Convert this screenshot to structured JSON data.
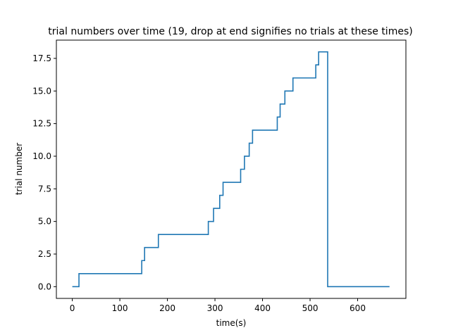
{
  "chart_data": {
    "type": "line",
    "title": "trial numbers over time (19, drop at end signifies no trials at these times)",
    "xlabel": "time(s)",
    "ylabel": "trial number",
    "xlim": [
      -33.5,
      701.5
    ],
    "ylim": [
      -0.9,
      18.9
    ],
    "xticks": [
      0,
      100,
      200,
      300,
      400,
      500,
      600
    ],
    "yticks": [
      0.0,
      2.5,
      5.0,
      7.5,
      10.0,
      12.5,
      15.0,
      17.5
    ],
    "ytick_labels": [
      "0.0",
      "2.5",
      "5.0",
      "7.5",
      "10.0",
      "12.5",
      "15.0",
      "17.5"
    ],
    "grid": false,
    "legend": false,
    "series": [
      {
        "color": "#1f77b4",
        "drawstyle": "steps-post",
        "x": [
          0,
          14,
          146,
          152,
          181,
          286,
          297,
          310,
          317,
          354,
          362,
          372,
          379,
          431,
          437,
          447,
          464,
          512,
          518,
          537,
          667
        ],
        "y": [
          0,
          1,
          2,
          3,
          4,
          5,
          6,
          7,
          8,
          9,
          10,
          11,
          12,
          13,
          14,
          15,
          16,
          17,
          18,
          0,
          0
        ]
      }
    ]
  }
}
